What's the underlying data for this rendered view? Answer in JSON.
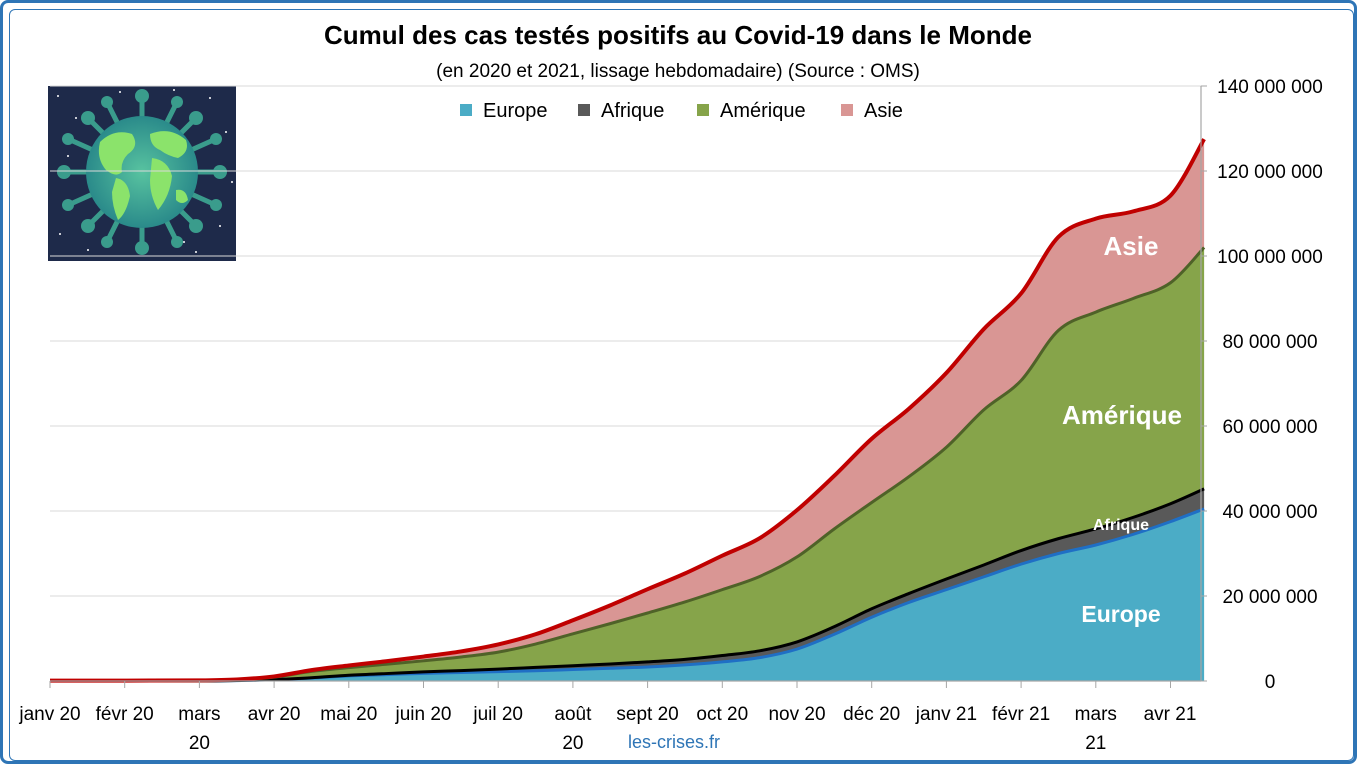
{
  "chart_data": {
    "type": "area",
    "stacked": true,
    "title": "Cumul des cas testés positifs au Covid-19 dans le Monde",
    "subtitle": "(en 2020 et 2021, lissage hebdomadaire) (Source : OMS)",
    "source_note": "les-crises.fr",
    "y_axis_position": "right",
    "ylim": [
      0,
      140000000
    ],
    "y_ticks": [
      0,
      20000000,
      40000000,
      60000000,
      80000000,
      100000000,
      120000000,
      140000000
    ],
    "y_tick_labels": [
      "0",
      "20 000 000",
      "40 000 000",
      "60 000 000",
      "80 000 000",
      "100 000 000",
      "120 000 000",
      "140 000 000"
    ],
    "grid": true,
    "legend_position": "top",
    "x_ticks": [
      {
        "label": "janv 20",
        "line2": "",
        "month": 0
      },
      {
        "label": "févr 20",
        "line2": "",
        "month": 1
      },
      {
        "label": "mars",
        "line2": "20",
        "month": 2
      },
      {
        "label": "avr 20",
        "line2": "",
        "month": 3
      },
      {
        "label": "mai 20",
        "line2": "",
        "month": 4
      },
      {
        "label": "juin 20",
        "line2": "",
        "month": 5
      },
      {
        "label": "juil 20",
        "line2": "",
        "month": 6
      },
      {
        "label": "août",
        "line2": "20",
        "month": 7
      },
      {
        "label": "sept 20",
        "line2": "",
        "month": 8
      },
      {
        "label": "oct 20",
        "line2": "",
        "month": 9
      },
      {
        "label": "nov 20",
        "line2": "",
        "month": 10
      },
      {
        "label": "déc 20",
        "line2": "",
        "month": 11
      },
      {
        "label": "janv 21",
        "line2": "",
        "month": 12
      },
      {
        "label": "févr 21",
        "line2": "",
        "month": 13
      },
      {
        "label": "mars",
        "line2": "21",
        "month": 14
      },
      {
        "label": "avr 21",
        "line2": "",
        "month": 15
      }
    ],
    "x_months": [
      0,
      1,
      2,
      2.5,
      3,
      3.5,
      4,
      4.5,
      5,
      5.5,
      6,
      6.5,
      7,
      7.5,
      8,
      8.5,
      9,
      9.5,
      10,
      10.5,
      11,
      11.5,
      12,
      12.5,
      13,
      13.5,
      14,
      14.5,
      15,
      15.45
    ],
    "series": [
      {
        "name": "Europe",
        "color": "#4bacc6",
        "edge": "#1f6fc5",
        "area_label": "Europe",
        "values": [
          0,
          0,
          0,
          100000,
          300000,
          700000,
          1200000,
          1500000,
          1800000,
          2000000,
          2200000,
          2400000,
          2700000,
          3000000,
          3300000,
          3800000,
          4500000,
          5500000,
          7500000,
          11000000,
          15000000,
          18500000,
          21500000,
          24500000,
          27500000,
          30000000,
          32000000,
          34500000,
          37500000,
          40500000
        ]
      },
      {
        "name": "Afrique",
        "color": "#595959",
        "edge": "#000000",
        "area_label": "Afrique",
        "values": [
          0,
          0,
          0,
          10000,
          20000,
          60000,
          150000,
          250000,
          350000,
          450000,
          600000,
          800000,
          900000,
          1000000,
          1200000,
          1300000,
          1500000,
          1600000,
          1700000,
          1800000,
          2000000,
          2100000,
          2500000,
          2800000,
          3200000,
          3500000,
          3800000,
          4000000,
          4200000,
          4700000
        ]
      },
      {
        "name": "Amérique",
        "color": "#86a44a",
        "edge": "#4f6228",
        "area_label": "Amérique",
        "values": [
          0,
          0,
          50000,
          150000,
          600000,
          1500000,
          1800000,
          2200000,
          2600000,
          3200000,
          4000000,
          5500000,
          7500000,
          9500000,
          11500000,
          13500000,
          15500000,
          17500000,
          20000000,
          23000000,
          25000000,
          27500000,
          31000000,
          36500000,
          40000000,
          49000000,
          51000000,
          51500000,
          52000000,
          56800000
        ]
      },
      {
        "name": "Asie",
        "color": "#d99694",
        "edge": "#c00000",
        "area_label": "Asie",
        "values": [
          100000,
          100000,
          100000,
          100000,
          150000,
          300000,
          500000,
          700000,
          1000000,
          1300000,
          1800000,
          2300000,
          3200000,
          4300000,
          5600000,
          6700000,
          8000000,
          9000000,
          11000000,
          12500000,
          15000000,
          16000000,
          17500000,
          19000000,
          20500000,
          22000000,
          22000000,
          20500000,
          20500000,
          25500000
        ]
      }
    ]
  }
}
